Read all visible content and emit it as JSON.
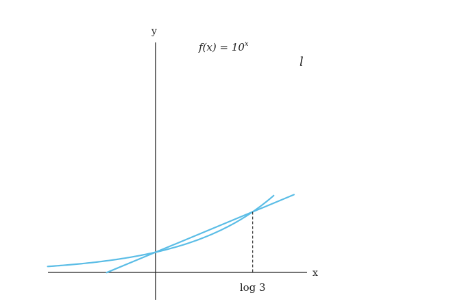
{
  "diagram": {
    "axes": {
      "x_label": "x",
      "y_label": "y",
      "x_range": [
        -1.1,
        1.55
      ],
      "y_range": [
        -0.45,
        4.5
      ]
    },
    "curve": {
      "function_label_prefix": "f(x) = 10",
      "function_label_superscript": "x",
      "color": "#5bbde6"
    },
    "tangent_line": {
      "label": "l",
      "color": "#5bbde6"
    },
    "intersection_tick_label": "log 3",
    "intersection_x": 0.4771,
    "intersection_y": 3
  }
}
